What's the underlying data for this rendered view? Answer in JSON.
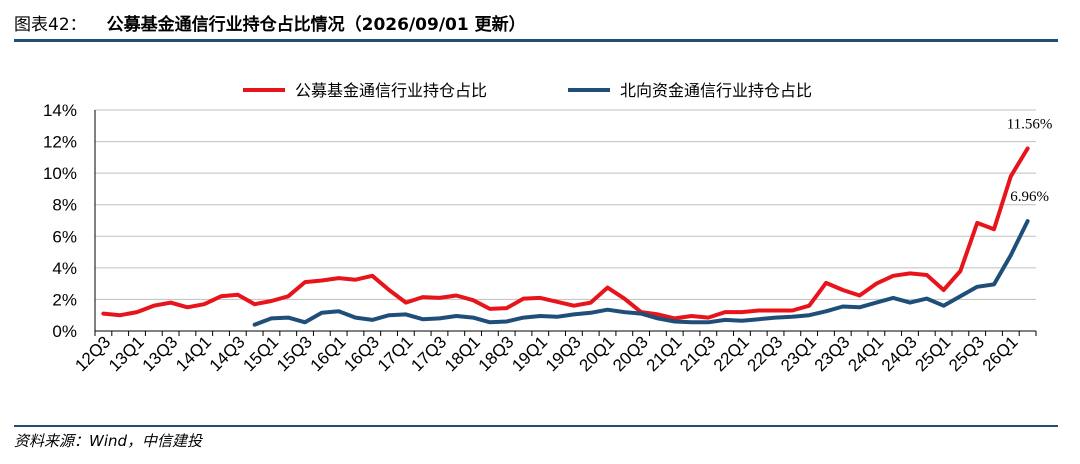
{
  "header": {
    "figure_label": "图表42：",
    "title": "公募基金通信行业持仓占比情况（2026/09/01 更新）"
  },
  "footer": {
    "source": "资料来源：Wind，中信建投"
  },
  "colors": {
    "series1": "#e8141c",
    "series2": "#1f4e79",
    "grid": "#bfbfbf",
    "rule": "#1f4e79"
  },
  "chart_data": {
    "type": "line",
    "title": "",
    "xlabel": "",
    "ylabel": "",
    "ylim": [
      0,
      14
    ],
    "yticks": [
      "0%",
      "2%",
      "4%",
      "6%",
      "8%",
      "10%",
      "12%",
      "14%"
    ],
    "ytick_values": [
      0,
      2,
      4,
      6,
      8,
      10,
      12,
      14
    ],
    "grid": "horizontal",
    "legend_position": "top-center",
    "x": [
      "12Q3",
      "12Q4",
      "13Q1",
      "13Q2",
      "13Q3",
      "13Q4",
      "14Q1",
      "14Q2",
      "14Q3",
      "14Q4",
      "15Q1",
      "15Q2",
      "15Q3",
      "15Q4",
      "16Q1",
      "16Q2",
      "16Q3",
      "16Q4",
      "17Q1",
      "17Q2",
      "17Q3",
      "17Q4",
      "18Q1",
      "18Q2",
      "18Q3",
      "18Q4",
      "19Q1",
      "19Q2",
      "19Q3",
      "19Q4",
      "20Q1",
      "20Q2",
      "20Q3",
      "20Q4",
      "21Q1",
      "21Q2",
      "21Q3",
      "21Q4",
      "22Q1",
      "22Q2",
      "22Q3",
      "22Q4",
      "23Q1",
      "23Q2",
      "23Q3",
      "23Q4",
      "24Q1",
      "24Q2",
      "24Q3",
      "24Q4",
      "25Q1",
      "25Q2",
      "25Q3",
      "25Q4",
      "26Q1",
      "26Q2"
    ],
    "x_tick_labels": [
      "12Q3",
      "13Q1",
      "13Q3",
      "14Q1",
      "14Q3",
      "15Q1",
      "15Q3",
      "16Q1",
      "16Q3",
      "17Q1",
      "17Q3",
      "18Q1",
      "18Q3",
      "19Q1",
      "19Q3",
      "20Q1",
      "20Q3",
      "21Q1",
      "21Q3",
      "22Q1",
      "22Q3",
      "23Q1",
      "23Q3",
      "24Q1",
      "24Q3",
      "25Q1",
      "25Q3",
      "26Q1"
    ],
    "series": [
      {
        "name": "公募基金通信行业持仓占比",
        "color": "#e8141c",
        "values": [
          1.1,
          1.0,
          1.2,
          1.6,
          1.8,
          1.5,
          1.7,
          2.2,
          2.3,
          1.7,
          1.9,
          2.2,
          3.1,
          3.2,
          3.35,
          3.25,
          3.5,
          2.6,
          1.8,
          2.15,
          2.1,
          2.25,
          1.95,
          1.4,
          1.45,
          2.05,
          2.1,
          1.85,
          1.6,
          1.8,
          2.75,
          2.05,
          1.2,
          1.05,
          0.8,
          0.95,
          0.85,
          1.2,
          1.2,
          1.3,
          1.3,
          1.3,
          1.6,
          3.05,
          2.6,
          2.25,
          3.0,
          3.5,
          3.65,
          3.55,
          2.6,
          3.8,
          6.85,
          6.45,
          9.8,
          11.56
        ]
      },
      {
        "name": "北向资金通信行业持仓占比",
        "color": "#1f4e79",
        "values": [
          null,
          null,
          null,
          null,
          null,
          null,
          null,
          null,
          null,
          0.4,
          0.8,
          0.85,
          0.55,
          1.15,
          1.25,
          0.85,
          0.7,
          1.0,
          1.05,
          0.75,
          0.8,
          0.95,
          0.85,
          0.55,
          0.6,
          0.85,
          0.95,
          0.9,
          1.05,
          1.15,
          1.35,
          1.2,
          1.1,
          0.8,
          0.6,
          0.55,
          0.55,
          0.7,
          0.65,
          0.75,
          0.85,
          0.9,
          1.0,
          1.25,
          1.55,
          1.5,
          1.8,
          2.1,
          1.8,
          2.05,
          1.6,
          2.2,
          2.8,
          2.95,
          4.8,
          6.96
        ]
      }
    ],
    "annotations": [
      {
        "text": "11.56%",
        "series": 0,
        "x": "26Q2",
        "y": 11.56
      },
      {
        "text": "6.96%",
        "series": 1,
        "x": "26Q2",
        "y": 6.96
      }
    ]
  }
}
